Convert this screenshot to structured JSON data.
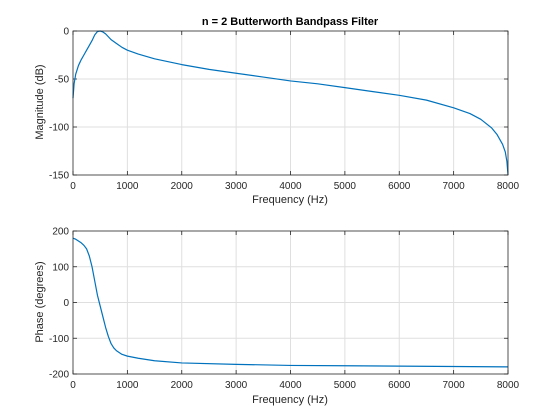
{
  "chart_data": [
    {
      "type": "line",
      "title": "n = 2 Butterworth Bandpass Filter",
      "xlabel": "Frequency (Hz)",
      "ylabel": "Magnitude (dB)",
      "xlim": [
        0,
        8000
      ],
      "ylim": [
        -150,
        0
      ],
      "xticks": [
        0,
        1000,
        2000,
        3000,
        4000,
        5000,
        6000,
        7000,
        8000
      ],
      "yticks": [
        -150,
        -100,
        -50,
        0
      ],
      "grid": true,
      "color": "#0072bd",
      "series": [
        {
          "x": [
            0,
            20,
            50,
            100,
            150,
            200,
            250,
            300,
            350,
            400,
            450,
            500,
            550,
            600,
            650,
            700,
            800,
            900,
            1000,
            1200,
            1500,
            2000,
            2500,
            3000,
            3500,
            4000,
            4500,
            5000,
            5500,
            6000,
            6500,
            7000,
            7300,
            7500,
            7700,
            7800,
            7900,
            7950,
            7980,
            8000
          ],
          "y": [
            -70,
            -55,
            -45,
            -36,
            -30,
            -25,
            -20,
            -15,
            -10,
            -4,
            -0.5,
            0,
            -1,
            -3,
            -6,
            -9,
            -13,
            -17,
            -20,
            -24,
            -29,
            -35,
            -40,
            -44,
            -48,
            -52,
            -55,
            -59,
            -63,
            -67,
            -72,
            -80,
            -86,
            -92,
            -101,
            -108,
            -118,
            -126,
            -136,
            -150
          ]
        }
      ]
    },
    {
      "type": "line",
      "title": "",
      "xlabel": "Frequency (Hz)",
      "ylabel": "Phase (degrees)",
      "xlim": [
        0,
        8000
      ],
      "ylim": [
        -200,
        200
      ],
      "xticks": [
        0,
        1000,
        2000,
        3000,
        4000,
        5000,
        6000,
        7000,
        8000
      ],
      "yticks": [
        -200,
        -100,
        0,
        100,
        200
      ],
      "grid": true,
      "color": "#0072bd",
      "series": [
        {
          "x": [
            0,
            50,
            100,
            150,
            200,
            250,
            300,
            350,
            400,
            450,
            500,
            550,
            600,
            650,
            700,
            750,
            800,
            900,
            1000,
            1200,
            1500,
            2000,
            3000,
            4000,
            5000,
            6000,
            7000,
            8000
          ],
          "y": [
            180,
            177,
            172,
            167,
            160,
            150,
            130,
            100,
            60,
            20,
            -10,
            -40,
            -70,
            -95,
            -115,
            -127,
            -135,
            -145,
            -150,
            -156,
            -163,
            -169,
            -173,
            -176,
            -177,
            -178,
            -179,
            -180
          ]
        }
      ]
    }
  ]
}
